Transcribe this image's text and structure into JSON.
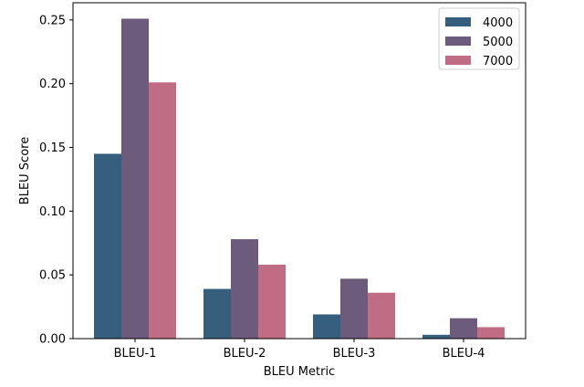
{
  "chart_data": {
    "type": "bar",
    "title": "",
    "xlabel": "BLEU Metric",
    "ylabel": "BLEU Score",
    "categories": [
      "BLEU-1",
      "BLEU-2",
      "BLEU-3",
      "BLEU-4"
    ],
    "series": [
      {
        "name": "4000",
        "color": "#355f7d",
        "values": [
          0.145,
          0.039,
          0.019,
          0.003
        ]
      },
      {
        "name": "5000",
        "color": "#6c5b7b",
        "values": [
          0.251,
          0.078,
          0.047,
          0.016
        ]
      },
      {
        "name": "7000",
        "color": "#c06c84",
        "values": [
          0.201,
          0.058,
          0.036,
          0.009
        ]
      }
    ],
    "ylim": [
      0,
      0.2635
    ],
    "yticks": [
      "0.00",
      "0.05",
      "0.10",
      "0.15",
      "0.20",
      "0.25"
    ],
    "legend_position": "top-right",
    "grid": false
  }
}
